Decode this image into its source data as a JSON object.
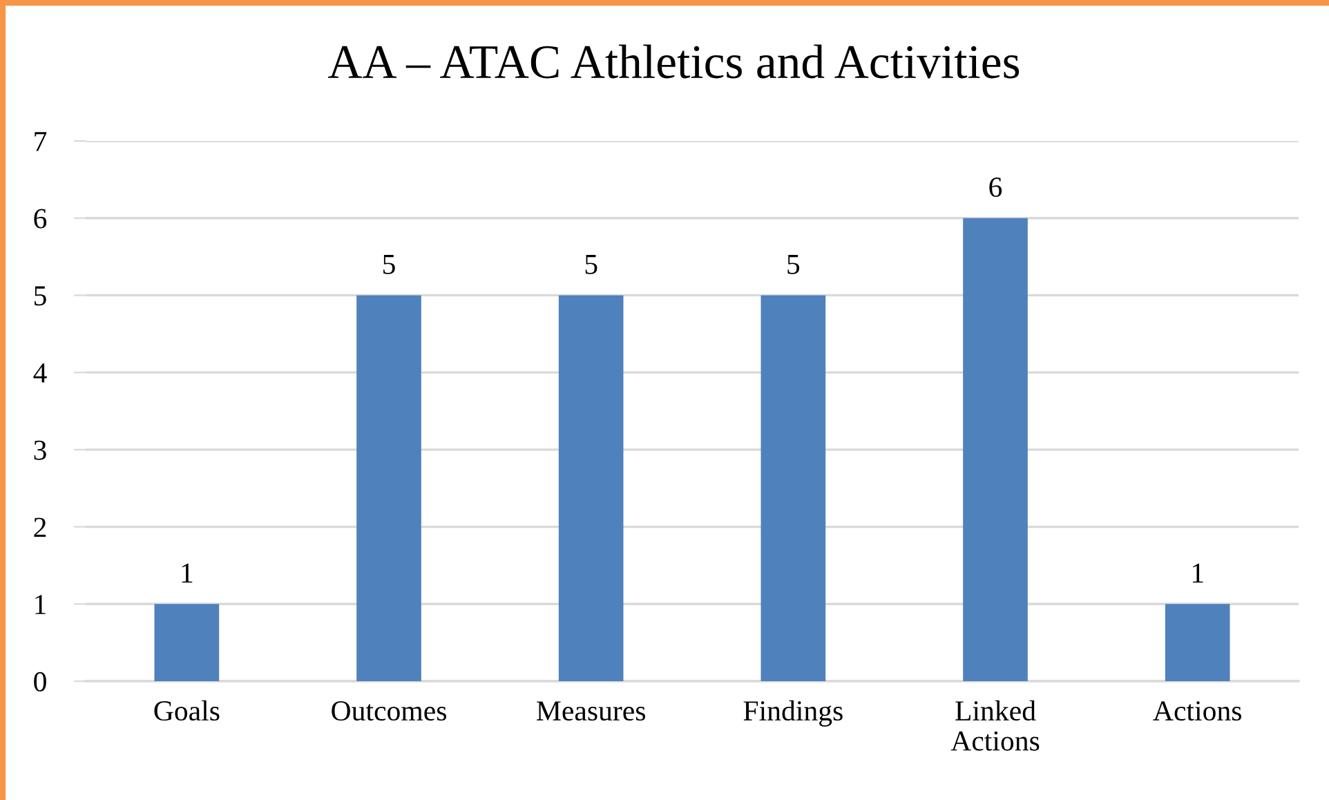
{
  "chart_data": {
    "type": "bar",
    "title": "AA – ATAC Athletics and Activities",
    "categories": [
      "Goals",
      "Outcomes",
      "Measures",
      "Findings",
      "Linked\nActions",
      "Actions"
    ],
    "values": [
      1,
      5,
      5,
      5,
      6,
      1
    ],
    "color": "#4f81bd",
    "ylim": [
      0,
      7
    ],
    "yticks": [
      0,
      1,
      2,
      3,
      4,
      5,
      6,
      7
    ],
    "grid": "y",
    "data_labels": true
  }
}
